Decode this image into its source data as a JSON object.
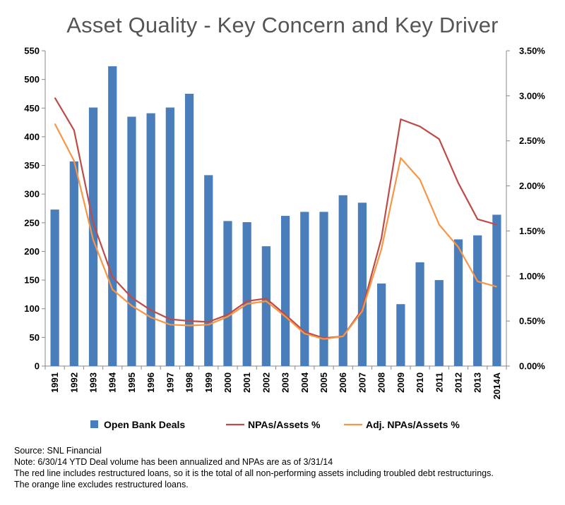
{
  "chart_data": {
    "type": "bar+line",
    "title": "Asset Quality - Key Concern and Key Driver",
    "categories": [
      "1991",
      "1992",
      "1993",
      "1994",
      "1995",
      "1996",
      "1997",
      "1998",
      "1999",
      "2000",
      "2001",
      "2002",
      "2003",
      "2004",
      "2005",
      "2006",
      "2007",
      "2008",
      "2009",
      "2010",
      "2011",
      "2012",
      "2013",
      "2014A"
    ],
    "y_left": {
      "min": 0,
      "max": 550,
      "step": 50,
      "ticks": [
        "0",
        "50",
        "100",
        "150",
        "200",
        "250",
        "300",
        "350",
        "400",
        "450",
        "500",
        "550"
      ]
    },
    "y_right": {
      "min": 0,
      "max": 3.5,
      "step": 0.5,
      "ticks": [
        "0.00%",
        "0.50%",
        "1.00%",
        "1.50%",
        "2.00%",
        "2.50%",
        "3.00%",
        "3.50%"
      ]
    },
    "series": [
      {
        "name": "Open Bank Deals",
        "type": "bar",
        "axis": "left",
        "color": "#4a7ebb",
        "values": [
          273,
          357,
          451,
          523,
          435,
          441,
          451,
          475,
          333,
          253,
          251,
          209,
          262,
          269,
          269,
          298,
          285,
          144,
          108,
          181,
          150,
          221,
          228,
          264
        ]
      },
      {
        "name": "NPAs/Assets %",
        "type": "line",
        "axis": "right",
        "color": "#be4b48",
        "values": [
          2.98,
          2.62,
          1.59,
          0.99,
          0.76,
          0.62,
          0.52,
          0.5,
          0.49,
          0.57,
          0.72,
          0.75,
          0.57,
          0.38,
          0.31,
          0.33,
          0.63,
          1.42,
          2.74,
          2.66,
          2.52,
          2.03,
          1.63,
          1.57
        ]
      },
      {
        "name": "Adj. NPAs/Assets %",
        "type": "line",
        "axis": "right",
        "color": "#f79646",
        "values": [
          2.69,
          2.28,
          1.4,
          0.85,
          0.67,
          0.54,
          0.46,
          0.45,
          0.46,
          0.55,
          0.69,
          0.72,
          0.55,
          0.36,
          0.3,
          0.33,
          0.61,
          1.3,
          2.31,
          2.07,
          1.57,
          1.32,
          0.94,
          0.88
        ]
      }
    ],
    "legend_position": "bottom",
    "grid": false
  },
  "notes": [
    "Source: SNL Financial",
    "Note: 6/30/14 YTD Deal volume  has been annualized and NPAs are as of 3/31/14",
    "The red line includes restructured loans, so it is the total of all non-performing assets including troubled debt restructurings.",
    "The orange line excludes restructured loans."
  ]
}
